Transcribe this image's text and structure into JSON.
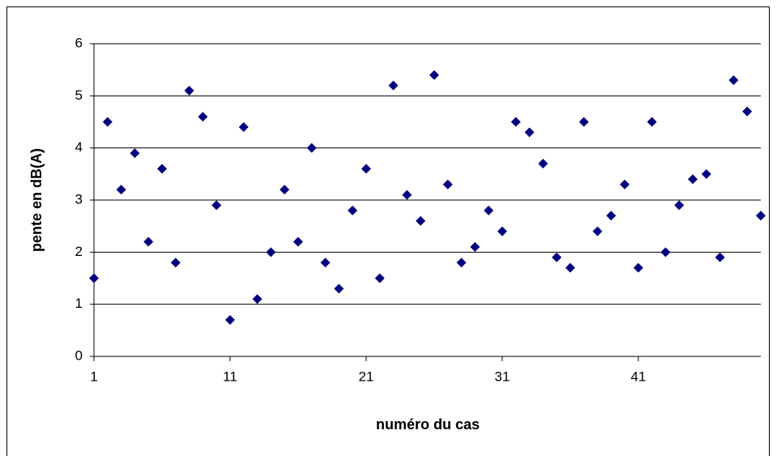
{
  "chart_data": {
    "type": "scatter",
    "x_label": "numéro du cas",
    "y_label": "pente en dB(A)",
    "x": [
      1,
      2,
      3,
      4,
      5,
      6,
      7,
      8,
      9,
      10,
      11,
      12,
      13,
      14,
      15,
      16,
      17,
      18,
      19,
      20,
      21,
      22,
      23,
      24,
      25,
      26,
      27,
      28,
      29,
      30,
      31,
      32,
      33,
      34,
      35,
      36,
      37,
      38,
      39,
      40,
      41,
      42,
      43,
      44,
      45,
      46,
      47,
      48,
      49,
      50
    ],
    "series": [
      {
        "color": "#000080",
        "marker": "diamond",
        "values": [
          1.5,
          4.5,
          3.2,
          3.9,
          2.2,
          3.6,
          1.8,
          5.1,
          4.6,
          2.9,
          0.7,
          4.4,
          1.1,
          2.0,
          3.2,
          2.2,
          4.0,
          1.8,
          1.3,
          2.8,
          3.6,
          1.5,
          5.2,
          3.1,
          2.6,
          5.4,
          3.3,
          1.8,
          2.1,
          2.8,
          2.4,
          4.5,
          4.3,
          3.7,
          1.9,
          1.7,
          4.5,
          2.4,
          2.7,
          3.3,
          1.7,
          4.5,
          2.0,
          2.9,
          3.4,
          3.5,
          1.9,
          5.3,
          4.7,
          2.7
        ]
      }
    ],
    "xlim": [
      1,
      50
    ],
    "xticks": [
      1,
      11,
      21,
      31,
      41
    ],
    "ylim": [
      0,
      6
    ],
    "yticks": [
      0,
      1,
      2,
      3,
      4,
      5,
      6
    ],
    "grid": true
  }
}
